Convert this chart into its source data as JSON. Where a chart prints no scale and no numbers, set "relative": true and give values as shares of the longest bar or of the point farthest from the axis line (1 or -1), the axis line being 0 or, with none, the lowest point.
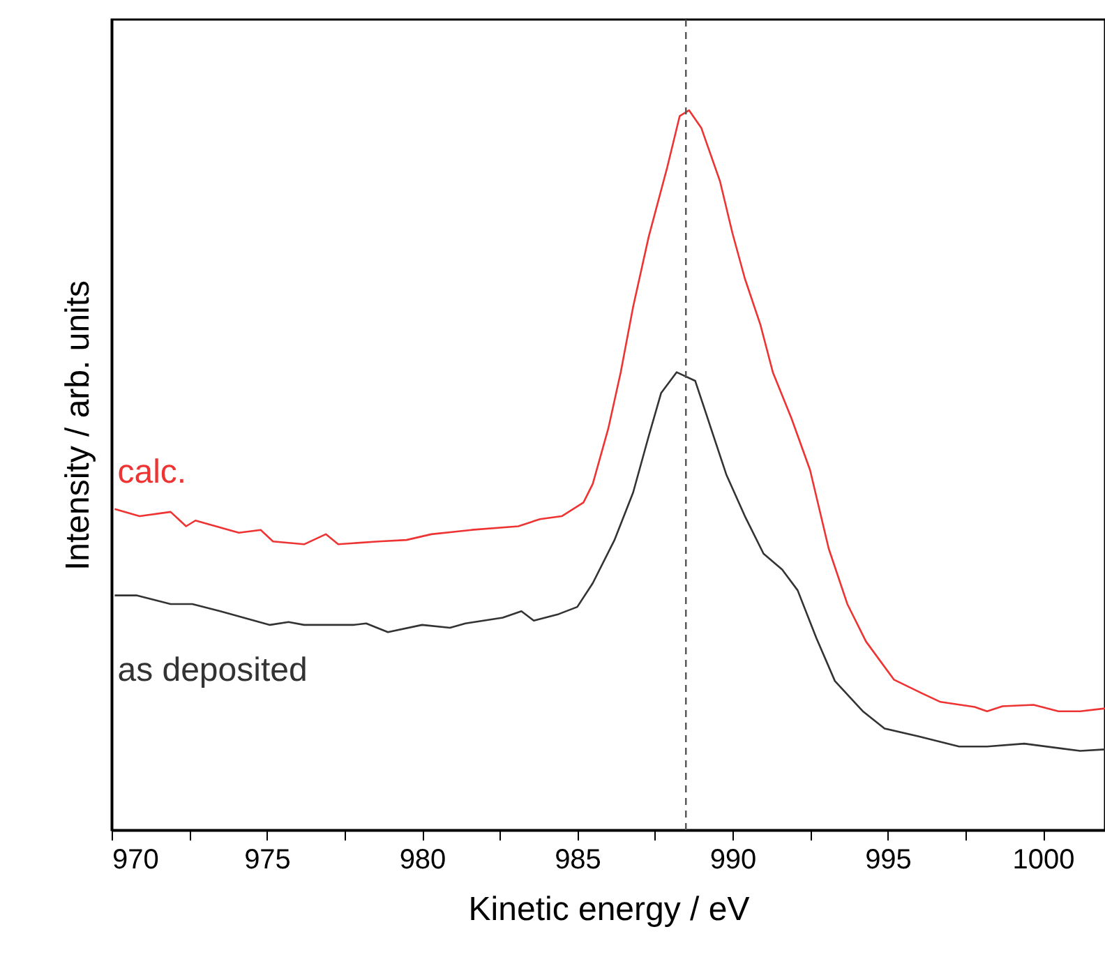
{
  "chart_data": {
    "type": "line",
    "relative": true,
    "xlabel": "Kinetic energy / eV",
    "ylabel": "Intensity / arb. units",
    "xlim": [
      970,
      1002
    ],
    "xticks": [
      970,
      {
        "value": 972.5,
        "label": null
      },
      975,
      {
        "value": 977.5,
        "label": null
      },
      980,
      {
        "value": 982.5,
        "label": null
      },
      985,
      {
        "value": 987.5,
        "label": null
      },
      990,
      {
        "value": 992.5,
        "label": null
      },
      995,
      {
        "value": 997.5,
        "label": null
      },
      1000
    ],
    "grid": false,
    "legend": false,
    "marker": "none",
    "line_style": "solid",
    "ref_lines": [
      {
        "axis": "x",
        "value": 988.5,
        "color": "#555555",
        "line_style": "dashed"
      }
    ],
    "series": [
      {
        "name": "calc.",
        "color": "#ee3333",
        "x": [
          970.1,
          970.9,
          971.9,
          972.4,
          972.7,
          974.1,
          974.8,
          975.2,
          976.2,
          976.9,
          977.3,
          978.6,
          979.5,
          980.3,
          981.6,
          983.1,
          983.8,
          984.5,
          985.2,
          985.5,
          986.0,
          986.4,
          986.8,
          987.3,
          987.9,
          988.3,
          988.6,
          989.0,
          989.6,
          990.0,
          990.4,
          990.9,
          991.3,
          991.9,
          992.5,
          993.1,
          993.7,
          994.3,
          995.2,
          996.1,
          996.7,
          997.8,
          998.2,
          998.7,
          999.7,
          1000.5,
          1001.2,
          1002.0
        ],
        "values": [
          0.446,
          0.436,
          0.442,
          0.422,
          0.43,
          0.413,
          0.417,
          0.401,
          0.397,
          0.411,
          0.397,
          0.401,
          0.403,
          0.411,
          0.417,
          0.422,
          0.432,
          0.436,
          0.455,
          0.481,
          0.558,
          0.636,
          0.727,
          0.824,
          0.921,
          0.992,
          1,
          0.975,
          0.901,
          0.829,
          0.766,
          0.702,
          0.636,
          0.572,
          0.5,
          0.391,
          0.314,
          0.262,
          0.209,
          0.19,
          0.178,
          0.171,
          0.165,
          0.172,
          0.174,
          0.165,
          0.165,
          0.169
        ]
      },
      {
        "name": "as deposited",
        "color": "#333333",
        "x": [
          970.1,
          970.8,
          971.9,
          972.6,
          973.5,
          975.1,
          975.7,
          976.2,
          977.8,
          978.2,
          978.9,
          980.0,
          980.9,
          981.4,
          982.6,
          983.2,
          983.6,
          984.4,
          985.0,
          985.5,
          986.2,
          986.8,
          987.3,
          987.7,
          988.2,
          988.8,
          989.2,
          989.8,
          990.4,
          991.0,
          991.6,
          992.1,
          992.7,
          993.3,
          994.2,
          994.9,
          996.0,
          997.3,
          998.2,
          999.4,
          1001.2,
          1002.0
        ],
        "values": [
          0.326,
          0.326,
          0.314,
          0.314,
          0.304,
          0.285,
          0.289,
          0.285,
          0.285,
          0.287,
          0.275,
          0.285,
          0.281,
          0.287,
          0.295,
          0.304,
          0.291,
          0.3,
          0.31,
          0.343,
          0.403,
          0.469,
          0.547,
          0.607,
          0.636,
          0.624,
          0.572,
          0.494,
          0.436,
          0.384,
          0.362,
          0.333,
          0.267,
          0.207,
          0.165,
          0.141,
          0.13,
          0.116,
          0.116,
          0.12,
          0.11,
          0.112
        ]
      }
    ]
  }
}
